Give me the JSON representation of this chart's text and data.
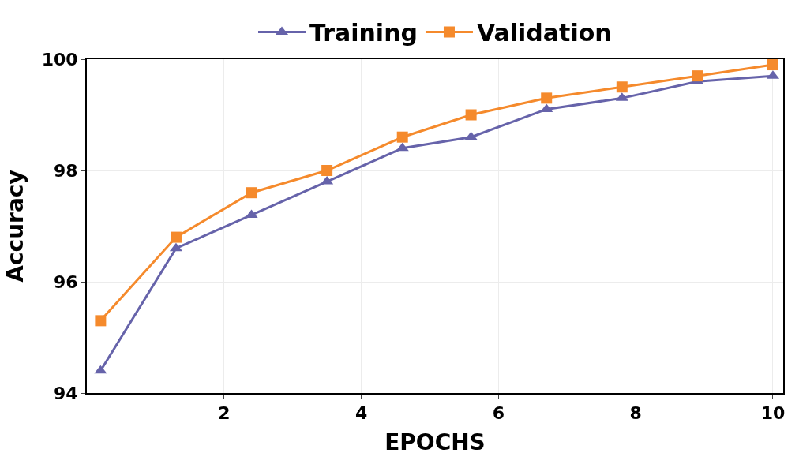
{
  "chart_data": {
    "type": "line",
    "xlabel": "EPOCHS",
    "ylabel": "Accuracy",
    "x": [
      0.2,
      1.3,
      2.4,
      3.5,
      4.6,
      5.6,
      6.7,
      7.8,
      8.9,
      10
    ],
    "series": [
      {
        "name": "Training",
        "color": "#6663aa",
        "marker": "triangle",
        "values": [
          94.4,
          96.6,
          97.2,
          97.8,
          98.4,
          98.6,
          99.1,
          99.3,
          99.6,
          99.7
        ]
      },
      {
        "name": "Validation",
        "color": "#f58a2c",
        "marker": "square",
        "values": [
          95.3,
          96.8,
          97.6,
          98.0,
          98.6,
          99.0,
          99.3,
          99.5,
          99.7,
          99.9
        ]
      }
    ],
    "xlim": [
      0,
      10.15
    ],
    "xticks": [
      2,
      4,
      6,
      8,
      10
    ],
    "ylim": [
      94,
      100
    ],
    "yticks": [
      94,
      96,
      98,
      100
    ],
    "grid": true,
    "legend": "top",
    "line_style": "solid"
  }
}
